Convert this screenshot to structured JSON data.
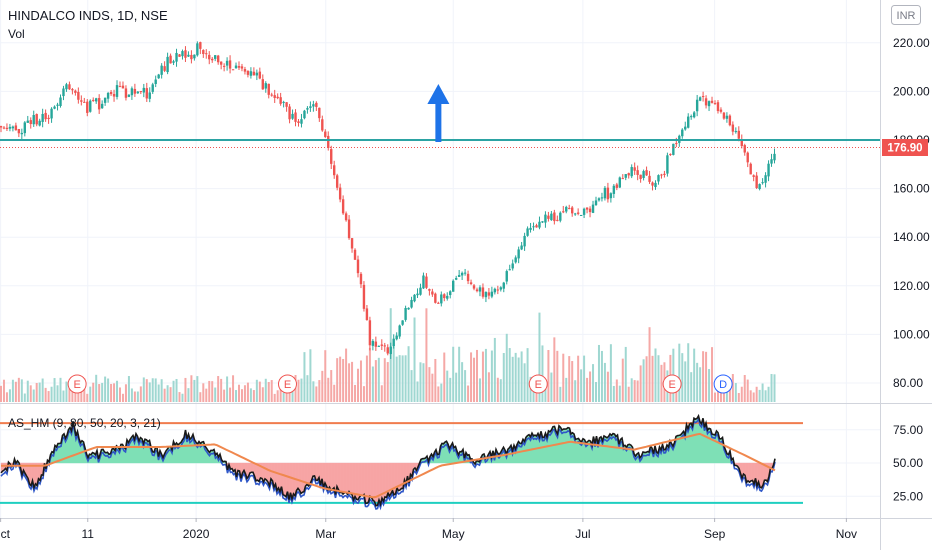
{
  "header": {
    "symbol_line": "HINDALCO INDS, 1D, NSE",
    "volume_label": "Vol",
    "currency_button": "INR"
  },
  "price_scale": {
    "ticks": [
      "220.00",
      "200.00",
      "180.00",
      "160.00",
      "140.00",
      "120.00",
      "100.00",
      "80.00"
    ],
    "tick_values": [
      220,
      200,
      180,
      160,
      140,
      120,
      100,
      80
    ],
    "last_price": "176.90",
    "last_price_value": 176.9
  },
  "indicator_scale": {
    "ticks": [
      "75.00",
      "50.00",
      "25.00"
    ],
    "tick_values": [
      75,
      50,
      25
    ]
  },
  "indicator": {
    "label": "AS_HM (9, 80, 50, 20, 3, 21)",
    "upper_level": 80,
    "mid_level": 50,
    "lower_level": 20
  },
  "time_axis": {
    "labels": [
      "Oct",
      "11",
      "2020",
      "Mar",
      "May",
      "Jul",
      "Sep",
      "Nov"
    ]
  },
  "events": [
    {
      "letter": "E",
      "color": "#ef5350"
    },
    {
      "letter": "E",
      "color": "#ef5350"
    },
    {
      "letter": "E",
      "color": "#ef5350"
    },
    {
      "letter": "E",
      "color": "#ef5350"
    },
    {
      "letter": "D",
      "color": "#2962ff"
    }
  ],
  "colors": {
    "up": "#26a69a",
    "down": "#ef5350",
    "volume_up": "#9fd7d1",
    "volume_down": "#f5a8a6",
    "horizontal_line": "#2ba3a3",
    "last_price_line": "#ef5350",
    "arrow": "#1e73e8",
    "osc_line": "#1a1a1a",
    "osc_blue": "#2f57c8",
    "osc_signal": "#f0884e",
    "upper_line": "#f07c4e",
    "lower_line": "#1fcfc0",
    "fill_above": "#7ee0b6",
    "fill_below": "#f7a5a5"
  },
  "chart_data": [
    {
      "type": "candlestick",
      "title": "HINDALCO INDS, 1D, NSE",
      "ylabel": "INR",
      "ylim": [
        76,
        230
      ],
      "horizontal_level": 180,
      "last_price": 176.9,
      "x_labels": [
        "Oct",
        "11",
        "2020",
        "Mar",
        "May",
        "Jul",
        "Sep",
        "Nov"
      ],
      "close_path": [
        {
          "date": "2019-09-26",
          "close": 186
        },
        {
          "date": "2019-10-10",
          "close": 184
        },
        {
          "date": "2019-10-24",
          "close": 190
        },
        {
          "date": "2019-11-01",
          "close": 203
        },
        {
          "date": "2019-11-12",
          "close": 193
        },
        {
          "date": "2019-11-25",
          "close": 200
        },
        {
          "date": "2019-12-09",
          "close": 199
        },
        {
          "date": "2019-12-19",
          "close": 214
        },
        {
          "date": "2020-01-02",
          "close": 217
        },
        {
          "date": "2020-01-14",
          "close": 211
        },
        {
          "date": "2020-01-28",
          "close": 207
        },
        {
          "date": "2020-02-07",
          "close": 198
        },
        {
          "date": "2020-02-18",
          "close": 187
        },
        {
          "date": "2020-02-25",
          "close": 195
        },
        {
          "date": "2020-03-03",
          "close": 178
        },
        {
          "date": "2020-03-09",
          "close": 155
        },
        {
          "date": "2020-03-16",
          "close": 132
        },
        {
          "date": "2020-03-23",
          "close": 96
        },
        {
          "date": "2020-04-01",
          "close": 93
        },
        {
          "date": "2020-04-09",
          "close": 110
        },
        {
          "date": "2020-04-17",
          "close": 122
        },
        {
          "date": "2020-04-24",
          "close": 112
        },
        {
          "date": "2020-05-04",
          "close": 126
        },
        {
          "date": "2020-05-15",
          "close": 116
        },
        {
          "date": "2020-05-26",
          "close": 123
        },
        {
          "date": "2020-06-05",
          "close": 143
        },
        {
          "date": "2020-06-17",
          "close": 150
        },
        {
          "date": "2020-06-29",
          "close": 150
        },
        {
          "date": "2020-07-13",
          "close": 158
        },
        {
          "date": "2020-07-24",
          "close": 167
        },
        {
          "date": "2020-08-05",
          "close": 163
        },
        {
          "date": "2020-08-14",
          "close": 178
        },
        {
          "date": "2020-08-24",
          "close": 196
        },
        {
          "date": "2020-09-03",
          "close": 193
        },
        {
          "date": "2020-09-12",
          "close": 181
        },
        {
          "date": "2020-09-22",
          "close": 160
        },
        {
          "date": "2020-09-30",
          "close": 176.9
        }
      ],
      "volume": "daily volume bars, highest during Mar–Aug 2020"
    },
    {
      "type": "line",
      "title": "AS_HM (9, 80, 50, 20, 3, 21)",
      "ylim": [
        12,
        90
      ],
      "levels": [
        80,
        50,
        20
      ],
      "series": [
        {
          "name": "AS_HM",
          "values": [
            {
              "date": "2019-09-26",
              "value": 43
            },
            {
              "date": "2019-10-08",
              "value": 50
            },
            {
              "date": "2019-10-17",
              "value": 32
            },
            {
              "date": "2019-10-28",
              "value": 66
            },
            {
              "date": "2019-11-04",
              "value": 78
            },
            {
              "date": "2019-11-12",
              "value": 55
            },
            {
              "date": "2019-11-22",
              "value": 58
            },
            {
              "date": "2019-12-05",
              "value": 70
            },
            {
              "date": "2019-12-16",
              "value": 56
            },
            {
              "date": "2019-12-27",
              "value": 72
            },
            {
              "date": "2020-01-08",
              "value": 60
            },
            {
              "date": "2020-01-20",
              "value": 42
            },
            {
              "date": "2020-02-03",
              "value": 38
            },
            {
              "date": "2020-02-14",
              "value": 24
            },
            {
              "date": "2020-02-26",
              "value": 38
            },
            {
              "date": "2020-03-06",
              "value": 30
            },
            {
              "date": "2020-03-16",
              "value": 24
            },
            {
              "date": "2020-03-26",
              "value": 21
            },
            {
              "date": "2020-04-06",
              "value": 30
            },
            {
              "date": "2020-04-16",
              "value": 50
            },
            {
              "date": "2020-04-28",
              "value": 64
            },
            {
              "date": "2020-05-12",
              "value": 52
            },
            {
              "date": "2020-05-26",
              "value": 60
            },
            {
              "date": "2020-06-08",
              "value": 70
            },
            {
              "date": "2020-06-22",
              "value": 76
            },
            {
              "date": "2020-07-03",
              "value": 66
            },
            {
              "date": "2020-07-15",
              "value": 70
            },
            {
              "date": "2020-07-27",
              "value": 57
            },
            {
              "date": "2020-08-10",
              "value": 62
            },
            {
              "date": "2020-08-24",
              "value": 84
            },
            {
              "date": "2020-09-04",
              "value": 68
            },
            {
              "date": "2020-09-14",
              "value": 40
            },
            {
              "date": "2020-09-24",
              "value": 32
            },
            {
              "date": "2020-09-30",
              "value": 54
            }
          ]
        },
        {
          "name": "signal",
          "values": [
            {
              "date": "2019-09-26",
              "value": 48
            },
            {
              "date": "2019-10-22",
              "value": 48
            },
            {
              "date": "2019-11-15",
              "value": 62
            },
            {
              "date": "2019-12-15",
              "value": 62
            },
            {
              "date": "2020-01-10",
              "value": 64
            },
            {
              "date": "2020-02-05",
              "value": 44
            },
            {
              "date": "2020-03-01",
              "value": 31
            },
            {
              "date": "2020-03-25",
              "value": 24
            },
            {
              "date": "2020-04-25",
              "value": 48
            },
            {
              "date": "2020-05-25",
              "value": 56
            },
            {
              "date": "2020-06-25",
              "value": 66
            },
            {
              "date": "2020-07-25",
              "value": 60
            },
            {
              "date": "2020-08-25",
              "value": 72
            },
            {
              "date": "2020-09-15",
              "value": 56
            },
            {
              "date": "2020-09-30",
              "value": 44
            }
          ]
        }
      ]
    }
  ]
}
